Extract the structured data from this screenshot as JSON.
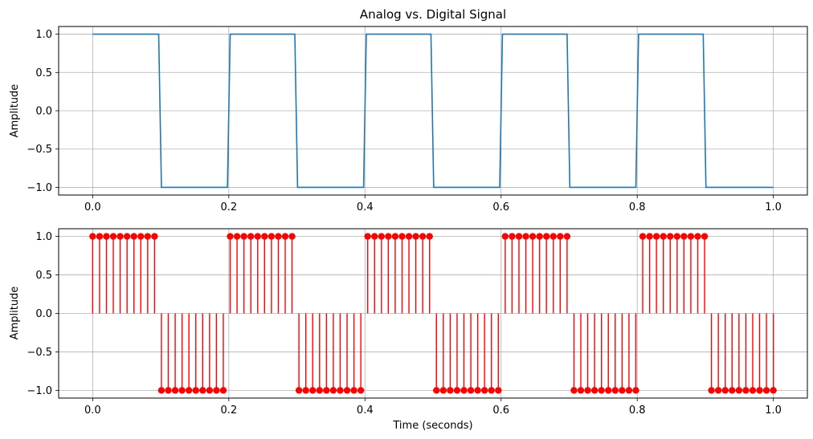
{
  "colors": {
    "analog": "#1f77b4",
    "digital": "#ff0000"
  },
  "chart_data": [
    {
      "type": "line",
      "title": "Analog vs. Digital Signal",
      "xlabel": "",
      "ylabel": "Amplitude",
      "xlim": [
        -0.05,
        1.05
      ],
      "ylim": [
        -1.1,
        1.1
      ],
      "xticks": [
        "0.0",
        "0.2",
        "0.4",
        "0.6",
        "0.8",
        "1.0"
      ],
      "yticks": [
        "−1.0",
        "−0.5",
        "0.0",
        "0.5",
        "1.0"
      ],
      "grid": true,
      "series": [
        {
          "x": [
            0,
            0.09697,
            0.10101,
            0.19798,
            0.20202,
            0.29697,
            0.30101,
            0.39798,
            0.40202,
            0.49697,
            0.50101,
            0.59798,
            0.60202,
            0.69697,
            0.70101,
            0.79798,
            0.80202,
            0.89697,
            0.90101,
            1.0
          ],
          "y": [
            1,
            1,
            -1,
            -1,
            1,
            1,
            -1,
            -1,
            1,
            1,
            -1,
            -1,
            1,
            1,
            -1,
            -1,
            1,
            1,
            -1,
            -1
          ]
        }
      ]
    },
    {
      "type": "scatter",
      "title": "",
      "xlabel": "Time (seconds)",
      "ylabel": "Amplitude",
      "xlim": [
        -0.05,
        1.05
      ],
      "ylim": [
        -1.1,
        1.1
      ],
      "xticks": [
        "0.0",
        "0.2",
        "0.4",
        "0.6",
        "0.8",
        "1.0"
      ],
      "yticks": [
        "−1.0",
        "−0.5",
        "0.0",
        "0.5",
        "1.0"
      ],
      "grid": true,
      "series": [
        {
          "samples": 100,
          "x_start": 0,
          "x_end": 1,
          "period": 0.2,
          "high_fraction": 0.5,
          "high_value": 1,
          "low_value": -1,
          "baseline": 0
        }
      ]
    }
  ]
}
